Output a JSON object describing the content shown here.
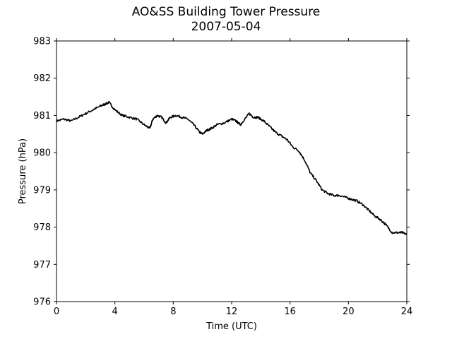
{
  "chart_data": {
    "type": "line",
    "title_line1": "AO&SS Building Tower Pressure",
    "title_line2": "2007-05-04",
    "xlabel": "Time (UTC)",
    "ylabel": "Pressure (hPa)",
    "xlim": [
      0,
      24
    ],
    "ylim": [
      976,
      983
    ],
    "xticks": [
      0,
      4,
      8,
      12,
      16,
      20,
      24
    ],
    "yticks": [
      976,
      977,
      978,
      979,
      980,
      981,
      982,
      983
    ],
    "grid": false,
    "line_color": "#000000",
    "series": [
      {
        "x": [
          0,
          0.5,
          1.0,
          1.5,
          2.0,
          2.5,
          3.0,
          3.3,
          3.6,
          4.0,
          4.5,
          5.0,
          5.5,
          6.0,
          6.4,
          6.6,
          6.9,
          7.2,
          7.5,
          7.8,
          8.2,
          8.6,
          9.0,
          9.4,
          9.8,
          10.0,
          10.3,
          10.6,
          11.0,
          11.5,
          12.0,
          12.3,
          12.6,
          12.9,
          13.2,
          13.5,
          13.8,
          14.2,
          14.6,
          15.0,
          15.4,
          15.8,
          16.2,
          16.6,
          17.0,
          17.4,
          17.8,
          18.2,
          18.6,
          19.0,
          19.4,
          19.8,
          20.2,
          20.6,
          21.0,
          21.4,
          21.8,
          22.2,
          22.6,
          23.0,
          23.4,
          23.7,
          24.0
        ],
        "y": [
          980.85,
          980.9,
          980.85,
          980.95,
          981.05,
          981.15,
          981.25,
          981.3,
          981.35,
          981.15,
          981.0,
          980.95,
          980.9,
          980.75,
          980.65,
          980.9,
          981.0,
          980.95,
          980.8,
          980.95,
          981.0,
          980.95,
          980.9,
          980.75,
          980.55,
          980.5,
          980.6,
          980.65,
          980.75,
          980.8,
          980.9,
          980.85,
          980.75,
          980.9,
          981.05,
          980.95,
          980.95,
          980.85,
          980.7,
          980.55,
          980.45,
          980.35,
          980.15,
          980.05,
          979.8,
          979.45,
          979.25,
          979.0,
          978.9,
          978.85,
          978.85,
          978.8,
          978.75,
          978.7,
          978.6,
          978.45,
          978.3,
          978.2,
          978.05,
          977.85,
          977.85,
          977.85,
          977.8
        ]
      }
    ]
  }
}
